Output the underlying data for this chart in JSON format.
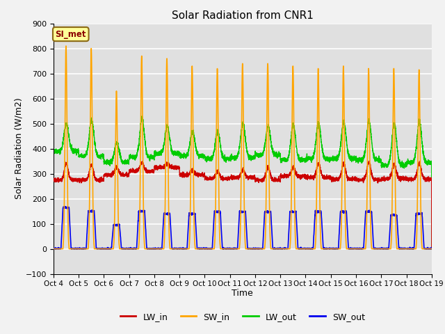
{
  "title": "Solar Radiation from CNR1",
  "xlabel": "Time",
  "ylabel": "Solar Radiation (W/m2)",
  "ylim": [
    -100,
    900
  ],
  "annotation_text": "SI_met",
  "annotation_color": "#8B0000",
  "annotation_bg": "#FFFF99",
  "annotation_border": "#8B6914",
  "x_tick_labels": [
    "Oct 4",
    "Oct 5",
    "Oct 6",
    "Oct 7",
    "Oct 8",
    "Oct 9",
    "Oct 10",
    "Oct 11",
    "Oct 12",
    "Oct 13",
    "Oct 14",
    "Oct 15",
    "Oct 16",
    "Oct 17",
    "Oct 18",
    "Oct 19"
  ],
  "colors": {
    "LW_in": "#CC0000",
    "SW_in": "#FFA500",
    "LW_out": "#00CC00",
    "SW_out": "#0000EE"
  },
  "bg_color": "#E0E0E0",
  "grid_color": "#FFFFFF",
  "yticks": [
    -100,
    0,
    100,
    200,
    300,
    400,
    500,
    600,
    700,
    800,
    900
  ],
  "num_days": 15,
  "SW_in_peaks": [
    810,
    800,
    630,
    770,
    760,
    730,
    720,
    740,
    740,
    730,
    720,
    730,
    720,
    720,
    715
  ],
  "LW_out_peaks": [
    500,
    515,
    425,
    520,
    490,
    470,
    470,
    500,
    490,
    495,
    505,
    505,
    510,
    500,
    510
  ],
  "LW_in_base": [
    275,
    275,
    295,
    310,
    325,
    295,
    280,
    285,
    275,
    290,
    285,
    278,
    275,
    280,
    278
  ],
  "LW_in_day_peak": [
    340,
    335,
    325,
    345,
    340,
    315,
    310,
    315,
    325,
    325,
    340,
    340,
    345,
    340,
    340
  ],
  "LW_out_base": [
    390,
    370,
    345,
    365,
    380,
    370,
    360,
    365,
    375,
    355,
    360,
    360,
    355,
    335,
    345
  ],
  "SW_out_peaks": [
    165,
    150,
    95,
    150,
    140,
    140,
    148,
    148,
    148,
    148,
    148,
    148,
    148,
    135,
    140
  ]
}
